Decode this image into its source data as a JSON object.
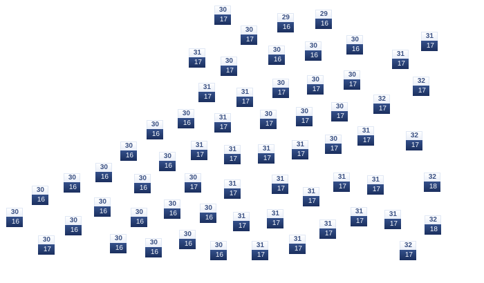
{
  "map": {
    "markers": [
      {
        "high": "30",
        "low": "17"
      },
      {
        "high": "30",
        "low": "17"
      },
      {
        "high": "29",
        "low": "16"
      },
      {
        "high": "29",
        "low": "16"
      },
      {
        "high": "30",
        "low": "16"
      },
      {
        "high": "30",
        "low": "16"
      },
      {
        "high": "30",
        "low": "16"
      },
      {
        "high": "31",
        "low": "17"
      },
      {
        "high": "31",
        "low": "17"
      },
      {
        "high": "31",
        "low": "17"
      },
      {
        "high": "30",
        "low": "17"
      },
      {
        "high": "31",
        "low": "17"
      },
      {
        "high": "31",
        "low": "17"
      },
      {
        "high": "30",
        "low": "17"
      },
      {
        "high": "30",
        "low": "17"
      },
      {
        "high": "30",
        "low": "17"
      },
      {
        "high": "32",
        "low": "17"
      },
      {
        "high": "32",
        "low": "17"
      },
      {
        "high": "30",
        "low": "17"
      },
      {
        "high": "30",
        "low": "17"
      },
      {
        "high": "30",
        "low": "17"
      },
      {
        "high": "31",
        "low": "17"
      },
      {
        "high": "30",
        "low": "16"
      },
      {
        "high": "30",
        "low": "16"
      },
      {
        "high": "31",
        "low": "17"
      },
      {
        "high": "32",
        "low": "17"
      },
      {
        "high": "30",
        "low": "17"
      },
      {
        "high": "31",
        "low": "17"
      },
      {
        "high": "31",
        "low": "17"
      },
      {
        "high": "31",
        "low": "17"
      },
      {
        "high": "31",
        "low": "17"
      },
      {
        "high": "30",
        "low": "16"
      },
      {
        "high": "30",
        "low": "16"
      },
      {
        "high": "30",
        "low": "16"
      },
      {
        "high": "30",
        "low": "16"
      },
      {
        "high": "30",
        "low": "16"
      },
      {
        "high": "30",
        "low": "16"
      },
      {
        "high": "30",
        "low": "16"
      },
      {
        "high": "30",
        "low": "17"
      },
      {
        "high": "31",
        "low": "17"
      },
      {
        "high": "30",
        "low": "16"
      },
      {
        "high": "30",
        "low": "16"
      },
      {
        "high": "30",
        "low": "17"
      },
      {
        "high": "30",
        "low": "16"
      },
      {
        "high": "30",
        "low": "16"
      },
      {
        "high": "30",
        "low": "16"
      },
      {
        "high": "31",
        "low": "17"
      },
      {
        "high": "30",
        "low": "16"
      },
      {
        "high": "30",
        "low": "16"
      },
      {
        "high": "30",
        "low": "16"
      },
      {
        "high": "30",
        "low": "16"
      },
      {
        "high": "31",
        "low": "17"
      },
      {
        "high": "31",
        "low": "17"
      },
      {
        "high": "31",
        "low": "17"
      },
      {
        "high": "31",
        "low": "17"
      },
      {
        "high": "32",
        "low": "18"
      },
      {
        "high": "31",
        "low": "17"
      },
      {
        "high": "31",
        "low": "17"
      },
      {
        "high": "31",
        "low": "17"
      },
      {
        "high": "31",
        "low": "17"
      },
      {
        "high": "32",
        "low": "18"
      },
      {
        "high": "31",
        "low": "17"
      },
      {
        "high": "31",
        "low": "17"
      },
      {
        "high": "32",
        "low": "17"
      }
    ]
  }
}
